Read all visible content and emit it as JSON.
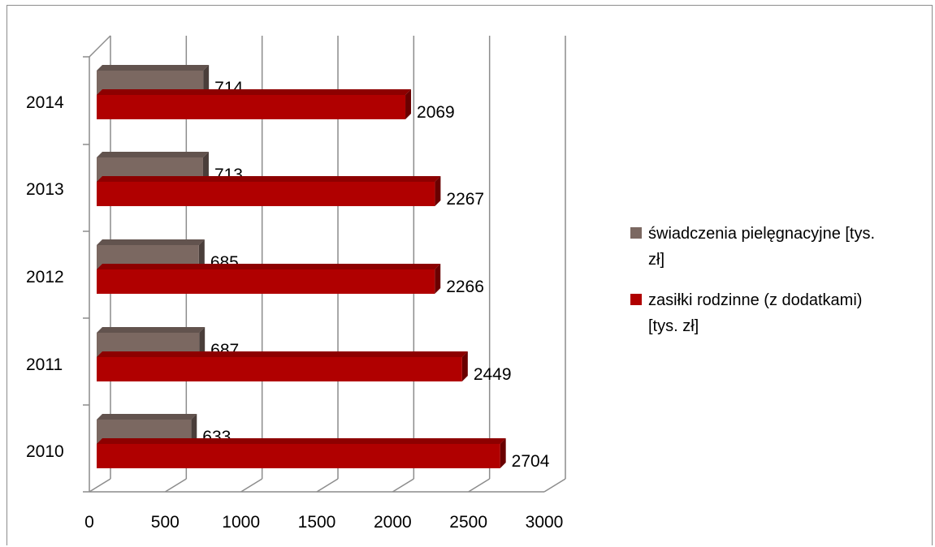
{
  "chart_data": {
    "type": "bar",
    "orientation": "horizontal",
    "style": "3d",
    "categories": [
      "2010",
      "2011",
      "2012",
      "2013",
      "2014"
    ],
    "series": [
      {
        "name": "zasiłki rodzinne (z dodatkami) [tys. zł]",
        "values": [
          2704,
          2449,
          2266,
          2267,
          2069
        ],
        "color": "#b00000"
      },
      {
        "name": "świadczenia pielęgnacyjne [tys. zł]",
        "values": [
          633,
          687,
          685,
          713,
          714
        ],
        "color": "#7b6861"
      }
    ],
    "xlim": [
      0,
      3000
    ],
    "x_ticks": [
      "0",
      "500",
      "1000",
      "1500",
      "2000",
      "2500",
      "3000"
    ],
    "grid": "vertical",
    "legend": {
      "position": "right",
      "entries": [
        {
          "lines": [
            "świadczenia pielęgnacyjne [tys.",
            "zł]"
          ],
          "color": "#7b6861"
        },
        {
          "lines": [
            "zasiłki rodzinne (z dodatkami)",
            "[tys. zł]"
          ],
          "color": "#b00000"
        }
      ]
    }
  }
}
